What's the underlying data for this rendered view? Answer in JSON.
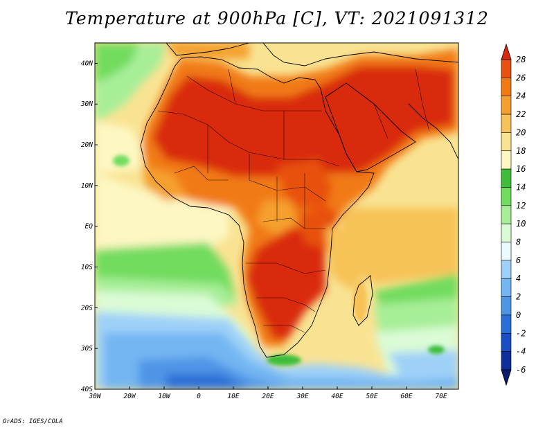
{
  "title": "Temperature at 900hPa [C], VT: 2021091312",
  "credit": "GrADS: IGES/COLA",
  "map": {
    "variable": "Temperature",
    "level": "900hPa",
    "units": "C",
    "valid_time": "2021091312",
    "lon_range": [
      -30,
      75
    ],
    "lat_range": [
      -40,
      45
    ],
    "lon_ticks": [
      "30W",
      "20W",
      "10W",
      "0",
      "10E",
      "20E",
      "30E",
      "40E",
      "50E",
      "60E",
      "70E"
    ],
    "lat_ticks": [
      "40N",
      "30N",
      "20N",
      "10N",
      "EQ",
      "10S",
      "20S",
      "30S",
      "40S"
    ]
  },
  "colorbar": {
    "labels": [
      "28",
      "26",
      "24",
      "22",
      "20",
      "18",
      "16",
      "14",
      "12",
      "10",
      "8",
      "6",
      "4",
      "2",
      "0",
      "-2",
      "-4",
      "-6"
    ],
    "colors": [
      "#d92a0c",
      "#e8510f",
      "#f17a12",
      "#f5a02e",
      "#f7c257",
      "#f9e393",
      "#fdf7c2",
      "#3ebd3a",
      "#72dc5f",
      "#a7ee98",
      "#dafbd6",
      "#e9fbff",
      "#9fd1f8",
      "#73b6f2",
      "#4f95e6",
      "#2a6fd8",
      "#1a4ec4",
      "#0e2f9b",
      "#0b1a6a"
    ]
  }
}
